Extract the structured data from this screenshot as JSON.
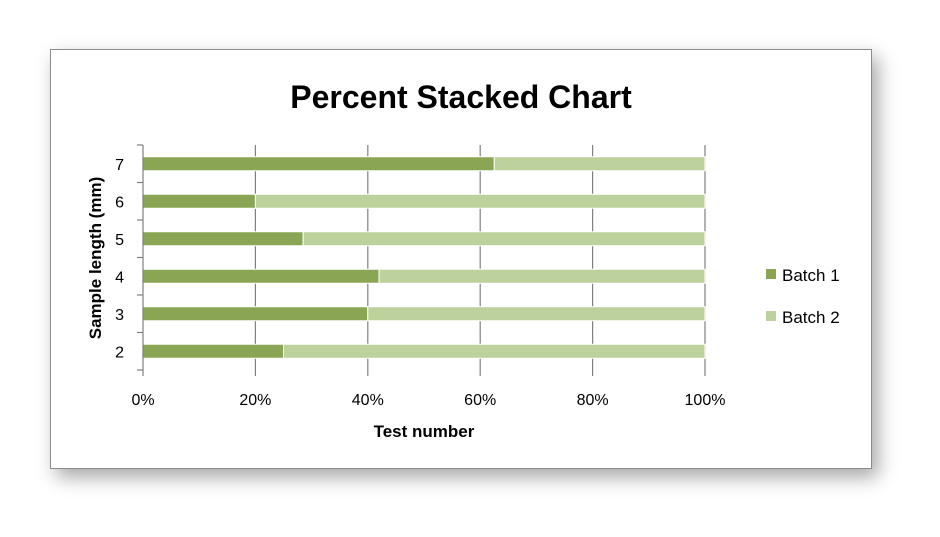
{
  "chart_data": {
    "type": "bar",
    "orientation": "horizontal",
    "stacking": "percent",
    "title": "Percent Stacked Chart",
    "xlabel": "Test number",
    "ylabel": "Sample length (mm)",
    "categories": [
      "2",
      "3",
      "4",
      "5",
      "6",
      "7"
    ],
    "series": [
      {
        "name": "Batch 1",
        "color": "#8aa654",
        "values": [
          25,
          40,
          42,
          28.5,
          20,
          62.5
        ]
      },
      {
        "name": "Batch 2",
        "color": "#bcd19b",
        "values": [
          75,
          60,
          58,
          71.5,
          80,
          37.5
        ]
      }
    ],
    "xlim": [
      0,
      100
    ],
    "x_ticks": [
      "0%",
      "20%",
      "40%",
      "60%",
      "80%",
      "100%"
    ],
    "grid": true,
    "legend_position": "right"
  }
}
